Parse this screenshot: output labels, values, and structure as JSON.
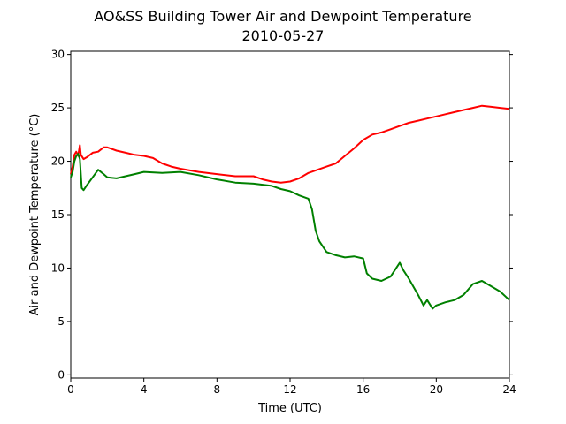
{
  "chart_data": {
    "type": "line",
    "title": "AO&SS Building Tower Air and Dewpoint Temperature",
    "subtitle": "2010-05-27",
    "xlabel": "Time (UTC)",
    "ylabel": "Air and Dewpoint Temperature (°C)",
    "xlim": [
      0,
      24
    ],
    "ylim": [
      -0.3,
      30.3
    ],
    "xticks": [
      0,
      4,
      8,
      12,
      16,
      20,
      24
    ],
    "yticks": [
      0,
      5,
      10,
      15,
      20,
      25,
      30
    ],
    "grid": false,
    "series": [
      {
        "color": "#ff0000",
        "x": [
          0,
          0.1,
          0.2,
          0.3,
          0.4,
          0.5,
          0.55,
          0.7,
          0.9,
          1.2,
          1.5,
          1.8,
          2.0,
          2.5,
          3.0,
          3.5,
          4.0,
          4.5,
          5.0,
          5.5,
          6.0,
          7.0,
          8.0,
          9.0,
          10.0,
          10.5,
          11.0,
          11.5,
          12.0,
          12.5,
          13.0,
          13.5,
          14.0,
          14.5,
          15.0,
          15.5,
          16.0,
          16.5,
          17.0,
          17.5,
          18.0,
          18.5,
          19.0,
          19.5,
          20.0,
          20.5,
          21.0,
          21.5,
          22.0,
          22.5,
          23.0,
          23.5,
          24.0
        ],
        "y": [
          18.8,
          19.5,
          20.6,
          20.9,
          20.5,
          21.5,
          20.6,
          20.2,
          20.4,
          20.8,
          20.9,
          21.3,
          21.3,
          21.0,
          20.8,
          20.6,
          20.5,
          20.3,
          19.8,
          19.5,
          19.3,
          19.0,
          18.8,
          18.6,
          18.6,
          18.3,
          18.1,
          18.0,
          18.1,
          18.4,
          18.9,
          19.2,
          19.5,
          19.8,
          20.5,
          21.2,
          22.0,
          22.5,
          22.7,
          23.0,
          23.3,
          23.6,
          23.8,
          24.0,
          24.2,
          24.4,
          24.6,
          24.8,
          25.0,
          25.2,
          25.1,
          25.0,
          24.9
        ]
      },
      {
        "color": "#008000",
        "x": [
          0,
          0.1,
          0.2,
          0.3,
          0.4,
          0.5,
          0.6,
          0.7,
          0.9,
          1.2,
          1.5,
          1.8,
          2.0,
          2.5,
          3.0,
          3.5,
          4.0,
          5.0,
          6.0,
          7.0,
          8.0,
          9.0,
          10.0,
          11.0,
          11.5,
          12.0,
          12.5,
          13.0,
          13.2,
          13.4,
          13.6,
          14.0,
          14.5,
          15.0,
          15.5,
          16.0,
          16.2,
          16.5,
          17.0,
          17.5,
          18.0,
          18.2,
          18.5,
          19.0,
          19.3,
          19.5,
          19.8,
          20.0,
          20.5,
          21.0,
          21.5,
          22.0,
          22.5,
          23.0,
          23.5,
          24.0
        ],
        "y": [
          18.5,
          19.0,
          20.0,
          20.5,
          20.7,
          20.2,
          17.5,
          17.3,
          17.8,
          18.5,
          19.2,
          18.8,
          18.5,
          18.4,
          18.6,
          18.8,
          19.0,
          18.9,
          19.0,
          18.7,
          18.3,
          18.0,
          17.9,
          17.7,
          17.4,
          17.2,
          16.8,
          16.5,
          15.5,
          13.5,
          12.5,
          11.5,
          11.2,
          11.0,
          11.1,
          10.9,
          9.5,
          9.0,
          8.8,
          9.2,
          10.5,
          9.8,
          9.0,
          7.5,
          6.5,
          7.0,
          6.2,
          6.5,
          6.8,
          7.0,
          7.5,
          8.5,
          8.8,
          8.3,
          7.8,
          7.0
        ]
      }
    ]
  }
}
